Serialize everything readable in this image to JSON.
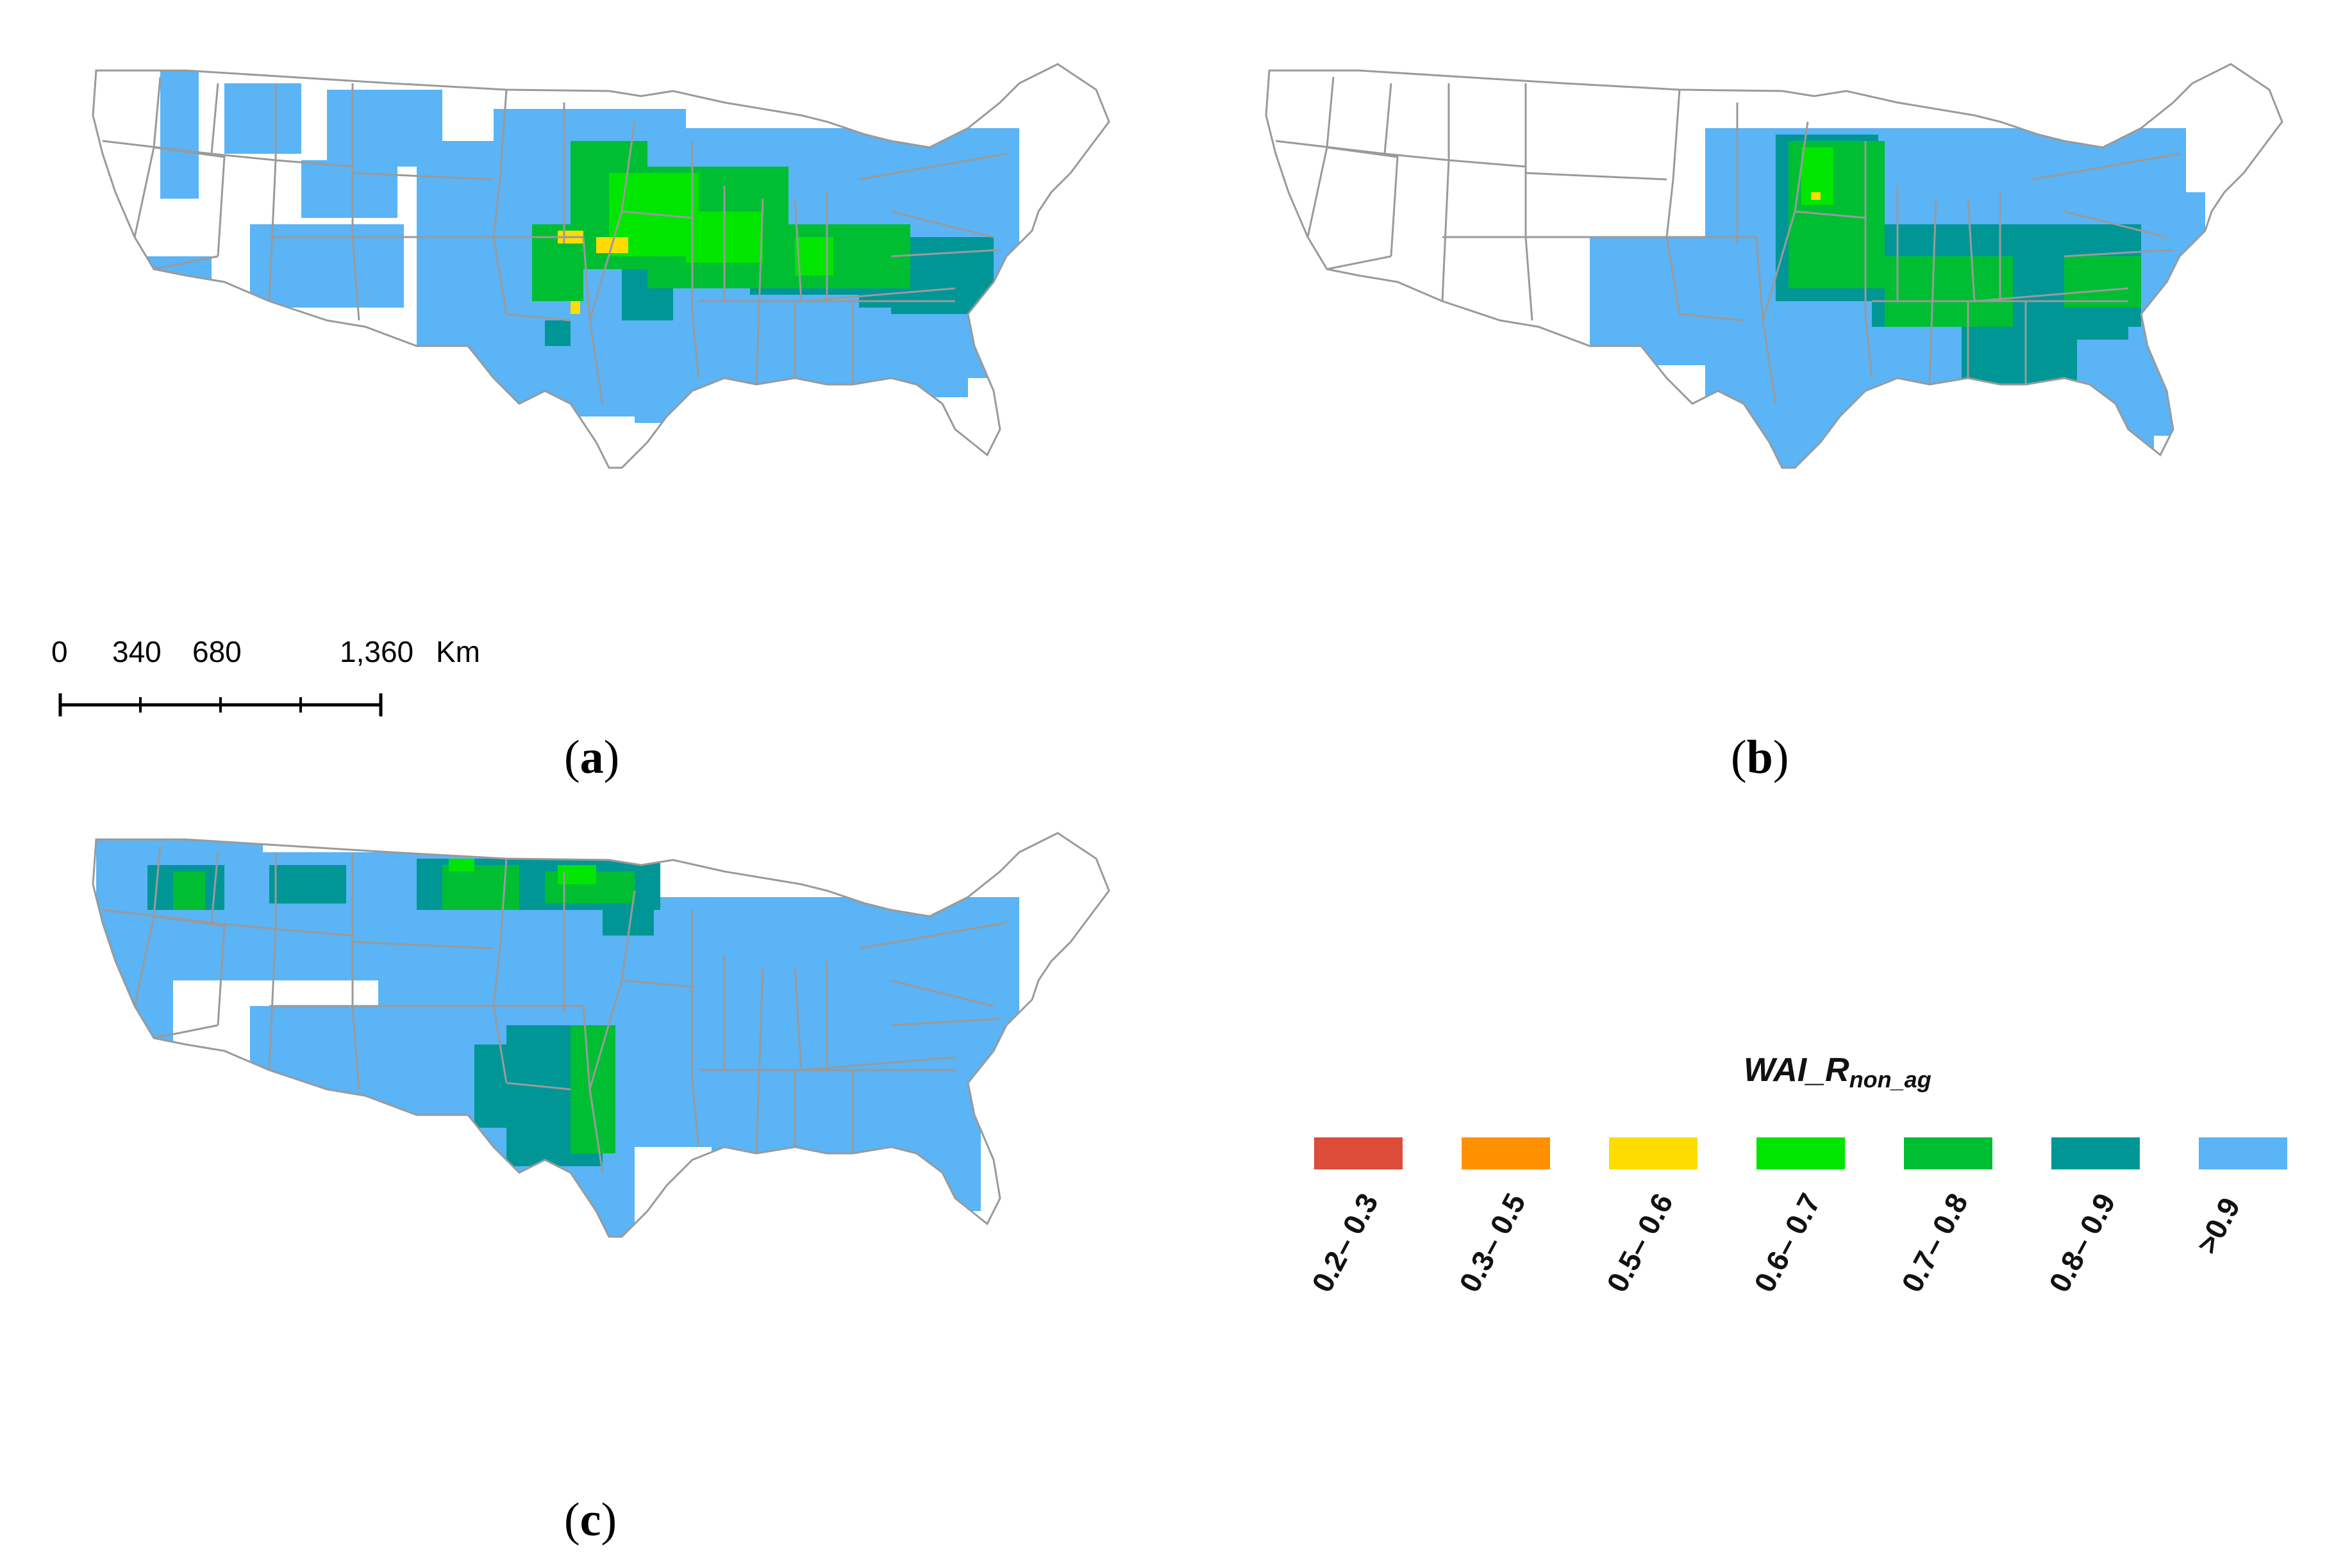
{
  "colors": {
    "bin_0_2_0_3": "#dd4b39",
    "bin_0_3_0_5": "#ff9000",
    "bin_0_5_0_6": "#ffdc00",
    "bin_0_6_0_7": "#00e600",
    "bin_0_7_0_8": "#00be32",
    "bin_0_8_0_9": "#009696",
    "bin_gt_0_9": "#5ab4f5",
    "state_border": "#9a9a9a",
    "background": "#ffffff"
  },
  "panels": [
    {
      "id": "a",
      "label_open": "(",
      "label_letter": "a",
      "label_close": ")"
    },
    {
      "id": "b",
      "label_open": "(",
      "label_letter": "b",
      "label_close": ")"
    },
    {
      "id": "c",
      "label_open": "(",
      "label_letter": "c",
      "label_close": ")"
    }
  ],
  "scalebar": {
    "labels": [
      "0",
      "340",
      "680",
      "1,360"
    ],
    "unit": "Km"
  },
  "legend": {
    "title_main": "WAI_R",
    "title_sub": "non_ag",
    "items": [
      {
        "label": "0.2– 0.3",
        "color_key": "bin_0_2_0_3"
      },
      {
        "label": "0.3– 0.5",
        "color_key": "bin_0_3_0_5"
      },
      {
        "label": "0.5– 0.6",
        "color_key": "bin_0_5_0_6"
      },
      {
        "label": "0.6– 0.7",
        "color_key": "bin_0_6_0_7"
      },
      {
        "label": "0.7– 0.8",
        "color_key": "bin_0_7_0_8"
      },
      {
        "label": "0.8– 0.9",
        "color_key": "bin_0_8_0_9"
      },
      {
        "label": ">0.9",
        "color_key": "bin_gt_0_9"
      }
    ]
  }
}
